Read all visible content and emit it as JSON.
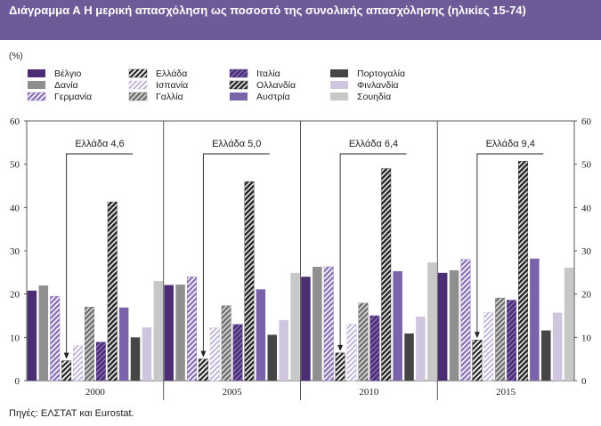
{
  "title": "Διάγραμμα Α  Η μερική απασχόληση ως ποσοστό της συνολικής απασχόλησης (ηλικίες 15-74)",
  "source": "Πηγές: ΕΛΣΤΑΤ και Eurostat.",
  "chart_data": {
    "type": "bar",
    "unit_label": "(%)",
    "ylim": [
      0,
      60
    ],
    "yticks": [
      0,
      10,
      20,
      30,
      40,
      50,
      60
    ],
    "categories": [
      "2000",
      "2005",
      "2010",
      "2015"
    ],
    "legend_position": "top",
    "series": [
      {
        "name": "Βέλγιο",
        "values": [
          20.8,
          22.1,
          24.0,
          24.9
        ],
        "color": "#4a2d73",
        "pattern": "solid"
      },
      {
        "name": "Δανία",
        "values": [
          22.0,
          22.2,
          26.3,
          25.5
        ],
        "color": "#8f8f8f",
        "pattern": "solid"
      },
      {
        "name": "Γερμανία",
        "values": [
          19.5,
          24.0,
          26.3,
          28.0
        ],
        "color": "#8a72b6",
        "pattern": "hatch-light"
      },
      {
        "name": "Ελλάδα",
        "values": [
          4.6,
          5.0,
          6.4,
          9.4
        ],
        "color": "#222222",
        "pattern": "hatch-dark"
      },
      {
        "name": "Ισπανία",
        "values": [
          8.1,
          12.2,
          13.1,
          15.8
        ],
        "color": "#c8bcdc",
        "pattern": "hatch-thin"
      },
      {
        "name": "Γαλλία",
        "values": [
          17.0,
          17.3,
          17.9,
          19.1
        ],
        "color": "#6e6e6e",
        "pattern": "hatch-grey"
      },
      {
        "name": "Ιταλία",
        "values": [
          8.9,
          13.0,
          15.0,
          18.6
        ],
        "color": "#5b3f8c",
        "pattern": "hatch-purple"
      },
      {
        "name": "Ολλανδία",
        "values": [
          41.3,
          46.0,
          49.0,
          50.7
        ],
        "color": "#333333",
        "pattern": "hatch-bold"
      },
      {
        "name": "Αυστρία",
        "values": [
          16.9,
          21.1,
          25.3,
          28.2
        ],
        "color": "#7a63a8",
        "pattern": "solid"
      },
      {
        "name": "Πορτογαλία",
        "values": [
          10.0,
          10.6,
          10.9,
          11.6
        ],
        "color": "#454545",
        "pattern": "solid"
      },
      {
        "name": "Φινλανδία",
        "values": [
          12.3,
          14.0,
          14.8,
          15.7
        ],
        "color": "#cfc5df",
        "pattern": "solid"
      },
      {
        "name": "Σουηδία",
        "values": [
          23.0,
          24.9,
          27.3,
          26.1
        ],
        "color": "#c8c8c8",
        "pattern": "solid"
      }
    ],
    "annotations": [
      {
        "category": "2000",
        "text": "Ελλάδα 4,6"
      },
      {
        "category": "2005",
        "text": "Ελλάδα 5,0"
      },
      {
        "category": "2010",
        "text": "Ελλάδα 6,4"
      },
      {
        "category": "2015",
        "text": "Ελλάδα 9,4"
      }
    ]
  }
}
